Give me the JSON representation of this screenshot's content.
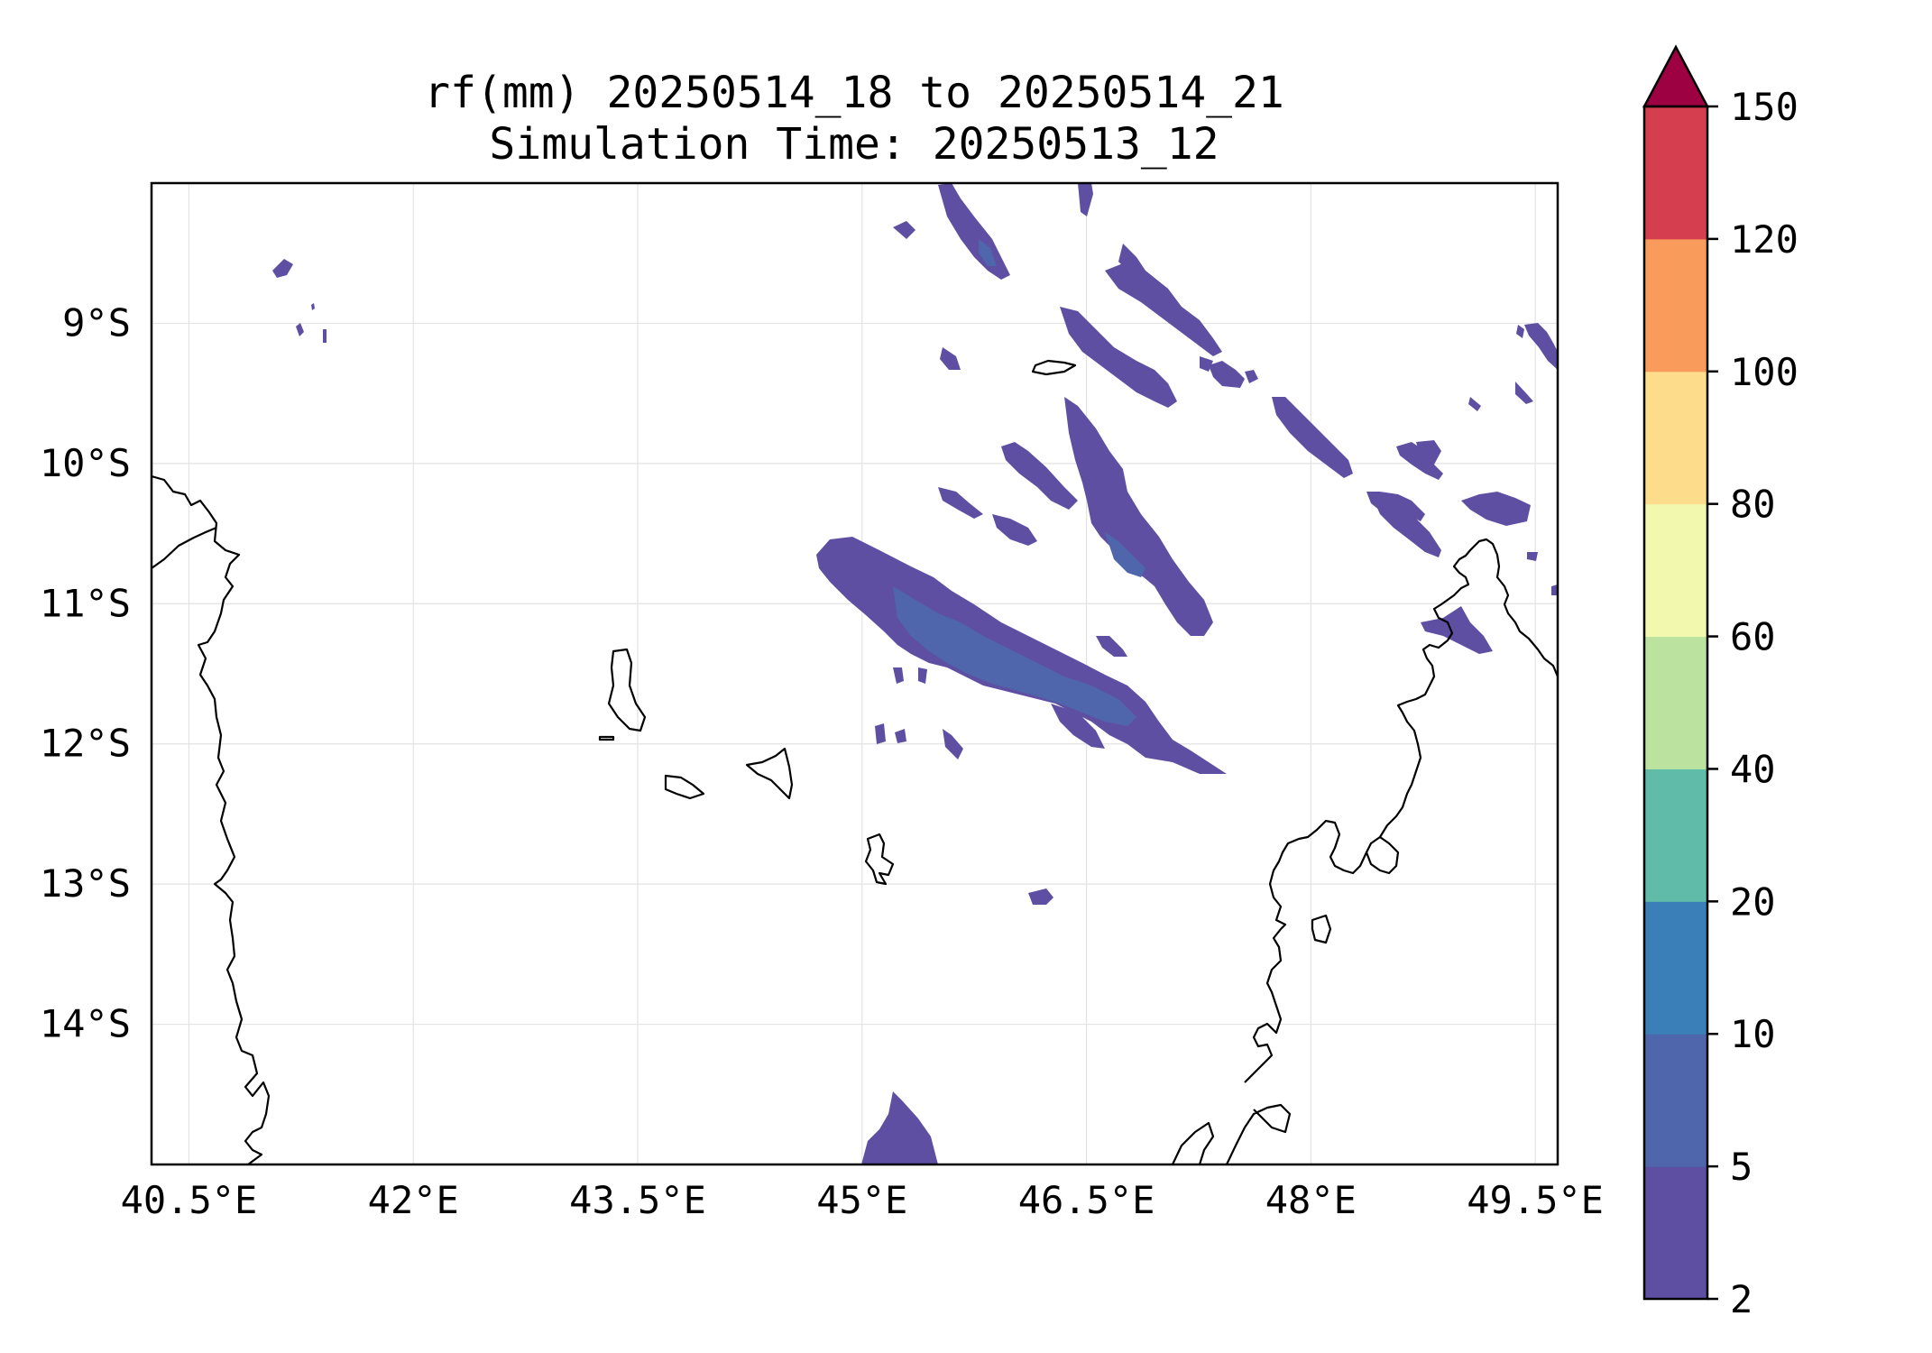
{
  "title": {
    "line1": "rf(mm) 20250514_18 to 20250514_21",
    "line2": "Simulation Time: 20250513_12"
  },
  "map": {
    "lon_range": [
      40.25,
      49.65
    ],
    "lat_range": [
      -15.0,
      -8.0
    ],
    "lon_ticks": [
      {
        "value": 40.5,
        "label": "40.5°E"
      },
      {
        "value": 42.0,
        "label": "42°E"
      },
      {
        "value": 43.5,
        "label": "43.5°E"
      },
      {
        "value": 45.0,
        "label": "45°E"
      },
      {
        "value": 46.5,
        "label": "46.5°E"
      },
      {
        "value": 48.0,
        "label": "48°E"
      },
      {
        "value": 49.5,
        "label": "49.5°E"
      }
    ],
    "lat_ticks": [
      {
        "value": -9,
        "label": "9°S"
      },
      {
        "value": -10,
        "label": "10°S"
      },
      {
        "value": -11,
        "label": "11°S"
      },
      {
        "value": -12,
        "label": "12°S"
      },
      {
        "value": -13,
        "label": "13°S"
      },
      {
        "value": -14,
        "label": "14°S"
      }
    ],
    "gridlines": true
  },
  "colorbar": {
    "levels": [
      "2",
      "5",
      "10",
      "20",
      "40",
      "60",
      "80",
      "100",
      "120",
      "150"
    ],
    "colors": [
      "#5e4fa2",
      "#4f66ad",
      "#3a7fb8",
      "#60bba8",
      "#bbe39f",
      "#f2f8ae",
      "#fddd8c",
      "#f99c5b",
      "#d53e4f"
    ],
    "extend_color": "#9e0142",
    "extend": "max"
  },
  "chart_data": {
    "type": "heatmap",
    "variable": "rf(mm)",
    "levels": [
      2,
      5,
      10,
      20,
      40,
      60,
      80,
      100,
      120,
      150
    ],
    "regions": [
      {
        "lon": [
          45.0,
          45.4
        ],
        "lat": [
          -14.5,
          -15.0
        ],
        "class": "2-5"
      },
      {
        "lon": [
          44.8,
          46.8
        ],
        "lat": [
          -10.6,
          -12.0
        ],
        "class": "2-10",
        "peak_class": "5-10"
      },
      {
        "lon": [
          45.5,
          47.0
        ],
        "lat": [
          -9.8,
          -11.1
        ],
        "class": "2-5"
      },
      {
        "lon": [
          45.5,
          48.2
        ],
        "lat": [
          -8.0,
          -9.8
        ],
        "class": "2-5"
      },
      {
        "lon": [
          47.2,
          48.8
        ],
        "lat": [
          -9.8,
          -11.2
        ],
        "class": "2-5"
      },
      {
        "lon": [
          48.6,
          49.6
        ],
        "lat": [
          -9.0,
          -11.1
        ],
        "class": "2-5"
      }
    ]
  }
}
